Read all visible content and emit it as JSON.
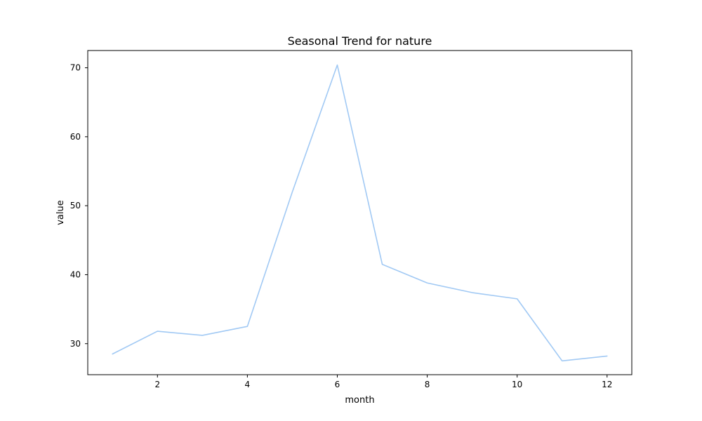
{
  "chart_data": {
    "type": "line",
    "title": "Seasonal Trend for nature",
    "xlabel": "month",
    "ylabel": "value",
    "x": [
      1,
      2,
      3,
      4,
      5,
      6,
      7,
      8,
      9,
      10,
      11,
      12
    ],
    "series": [
      {
        "values": [
          28.5,
          31.8,
          31.2,
          32.5,
          52.0,
          70.4,
          41.5,
          38.8,
          37.4,
          36.5,
          27.5,
          28.2
        ],
        "color": "#a1c9f4"
      }
    ],
    "xlim": [
      0.45,
      12.55
    ],
    "ylim": [
      25.5,
      72.5
    ],
    "x_ticks": [
      2,
      4,
      6,
      8,
      10,
      12
    ],
    "y_ticks": [
      30,
      40,
      50,
      60,
      70
    ],
    "x_tick_labels": [
      "2",
      "4",
      "6",
      "8",
      "10",
      "12"
    ],
    "y_tick_labels": [
      "30",
      "40",
      "50",
      "60",
      "70"
    ],
    "grid": false,
    "legend": false
  }
}
